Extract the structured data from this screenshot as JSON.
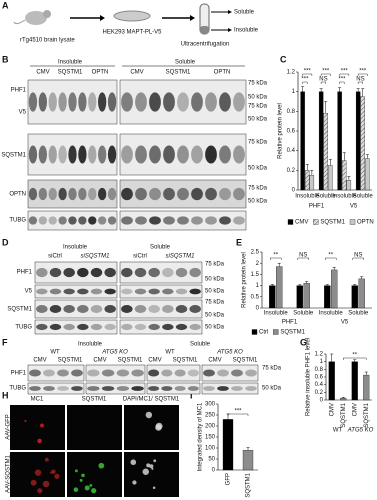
{
  "panel_labels": [
    "A",
    "B",
    "C",
    "D",
    "E",
    "F",
    "G",
    "H",
    "I"
  ],
  "panel_a": {
    "source": "rTg4510 brain lysate",
    "cells": "HEK293 MAPT-PL-V5",
    "fractions": [
      "Soluble",
      "Insoluble"
    ],
    "step": "Ultracentrifugation"
  },
  "panel_b": {
    "fractions": [
      "Insoluble",
      "Soluble"
    ],
    "lanes": [
      "CMV",
      "SQSTM1",
      "OPTN",
      "CMV",
      "SQSTM1",
      "OPTN"
    ],
    "rows": [
      "PHF1",
      "V5",
      "SQSTM1",
      "OPTN",
      "TUBG"
    ],
    "markers": [
      "75 kDa",
      "50 kDa",
      "75 kDa",
      "50 kDa",
      "75 kDa",
      "50 kDa",
      "75 kDa",
      "50 kDa"
    ]
  },
  "panel_d": {
    "fractions": [
      "Insoluble",
      "Soluble"
    ],
    "lanes": [
      "siCtrl",
      "siSQSTM1",
      "siCtrl",
      "siSQSTM1"
    ],
    "rows": [
      "PHF1",
      "V5",
      "SQSTM1",
      "TUBG"
    ],
    "markers": [
      "75 kDa",
      "50 kDa",
      "50 kDa",
      "75 kDa",
      "50 kDa",
      "50 kDa"
    ]
  },
  "panel_f": {
    "fractions": [
      "Insoluble",
      "Soluble"
    ],
    "genotypes": [
      "WT",
      "ATG5 KO",
      "WT",
      "ATG5 KO"
    ],
    "lanes": [
      "CMV",
      "SQSTM1",
      "CMV",
      "SQSTM1",
      "CMV",
      "SQSTM1",
      "CMV",
      "SQSTM1"
    ],
    "rows": [
      "PHF1",
      "TUBG"
    ],
    "markers": [
      "75 kDa",
      "50 kDa"
    ]
  },
  "panel_h": {
    "columns": [
      "MC1",
      "SQSTM1",
      "DAPI/MC1/ SQSTM1"
    ],
    "rows": [
      "AAV-GFP",
      "AAV-SQSTM1"
    ]
  },
  "chart_data": [
    {
      "type": "bar",
      "ylabel": "Relative protein level",
      "categories": [
        "Insoluble",
        "Soluble",
        "Insoluble",
        "Soluble"
      ],
      "groups": [
        "PHF1",
        "V5"
      ],
      "series": [
        {
          "name": "CMV",
          "color": "#000000",
          "values": [
            1,
            1,
            1,
            1
          ],
          "errors": [
            0.05,
            0.03,
            0.04,
            0.03
          ]
        },
        {
          "name": "SQSTM1",
          "color": "#aaaaaa",
          "hatch": true,
          "values": [
            0.2,
            0.78,
            0.3,
            0.95
          ],
          "errors": [
            0.06,
            0.12,
            0.08,
            0.08
          ]
        },
        {
          "name": "OPTN",
          "color": "#c8c8c8",
          "values": [
            0.15,
            0.25,
            0.1,
            0.32
          ],
          "errors": [
            0.05,
            0.06,
            0.04,
            0.04
          ]
        }
      ],
      "ylim": [
        0,
        1.2
      ],
      "yticks": [
        0,
        0.2,
        0.4,
        0.6,
        0.8,
        1,
        1.2
      ],
      "annotations": [
        "***",
        "***",
        "NS",
        "***",
        "***",
        "***",
        "NS",
        "***"
      ]
    },
    {
      "type": "bar",
      "ylabel": "Relative protein level",
      "categories": [
        "Insoluble",
        "Soluble",
        "Insoluble",
        "Soluble"
      ],
      "groups": [
        "PHF1",
        "V5"
      ],
      "series": [
        {
          "name": "Ctrl",
          "color": "#000000",
          "values": [
            1,
            1,
            1,
            1
          ],
          "errors": [
            0.05,
            0.04,
            0.04,
            0.05
          ]
        },
        {
          "name": "SQSTM1",
          "color": "#8c8c8c",
          "values": [
            1.85,
            1.1,
            1.7,
            1.3
          ],
          "errors": [
            0.15,
            0.08,
            0.12,
            0.1
          ]
        }
      ],
      "ylim": [
        0,
        2.5
      ],
      "yticks": [
        0,
        0.5,
        1,
        1.5,
        2,
        2.5
      ],
      "annotations": [
        "**",
        "NS",
        "**",
        "NS"
      ]
    },
    {
      "type": "bar",
      "ylabel": "Relative insoluble PHF1 level",
      "categories": [
        "CMV",
        "SQSTM1",
        "CMV",
        "SQSTM1"
      ],
      "groups": [
        "WT",
        "ATG5 KO"
      ],
      "values": [
        1,
        0.05,
        1,
        0.65
      ],
      "errors": [
        0.2,
        0.02,
        0.05,
        0.08
      ],
      "colors": [
        "#000000",
        "#8c8c8c",
        "#000000",
        "#8c8c8c"
      ],
      "ylim": [
        0,
        1.2
      ],
      "yticks": [
        0,
        0.2,
        0.4,
        0.6,
        0.8,
        1,
        1.2
      ],
      "annotations": [
        "**"
      ]
    },
    {
      "type": "bar",
      "ylabel": "Integrated density of MC1",
      "categories": [
        "GFP",
        "SQSTM1"
      ],
      "values": [
        230,
        90
      ],
      "errors": [
        25,
        12
      ],
      "colors": [
        "#000000",
        "#8c8c8c"
      ],
      "ylim": [
        0,
        300
      ],
      "yticks": [
        0,
        50,
        100,
        150,
        200,
        250,
        300
      ],
      "annotations": [
        "***"
      ]
    }
  ]
}
